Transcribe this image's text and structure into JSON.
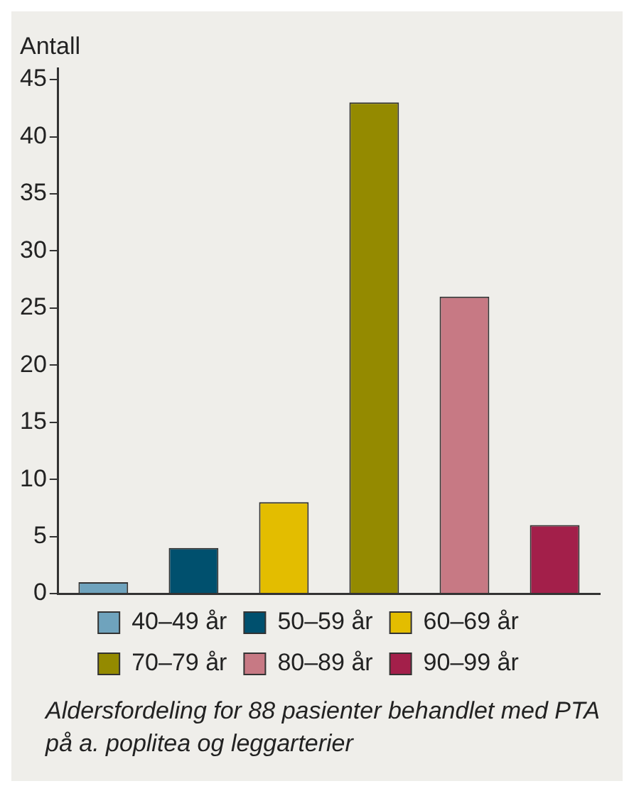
{
  "chart_data": {
    "type": "bar",
    "ylabel": "Antall",
    "categories": [
      null,
      null,
      null,
      null,
      null,
      null
    ],
    "series": [
      {
        "name": "40–49 år",
        "color": "#6fa3bd",
        "values": [
          1,
          null,
          null,
          null,
          null,
          null
        ]
      },
      {
        "name": "50–59 år",
        "color": "#00506e",
        "values": [
          null,
          4,
          null,
          null,
          null,
          null
        ]
      },
      {
        "name": "60–69 år",
        "color": "#e3bd00",
        "values": [
          null,
          null,
          8,
          null,
          null,
          null
        ]
      },
      {
        "name": "70–79 år",
        "color": "#948a00",
        "values": [
          null,
          null,
          null,
          43,
          null,
          null
        ]
      },
      {
        "name": "80–89 år",
        "color": "#c77984",
        "values": [
          null,
          null,
          null,
          null,
          26,
          null
        ]
      },
      {
        "name": "90–99 år",
        "color": "#a31f4a",
        "values": [
          null,
          null,
          null,
          null,
          null,
          6
        ]
      }
    ],
    "ylim": [
      0,
      46
    ],
    "yticks": [
      0,
      5,
      10,
      15,
      20,
      25,
      30,
      35,
      40,
      45
    ],
    "grid": false,
    "legend": "bottom",
    "tick_labels": "y",
    "annotations": [
      "Aldersfordeling for 88 pasienter behandlet med PTA på a. poplitea og leggarterier"
    ]
  }
}
